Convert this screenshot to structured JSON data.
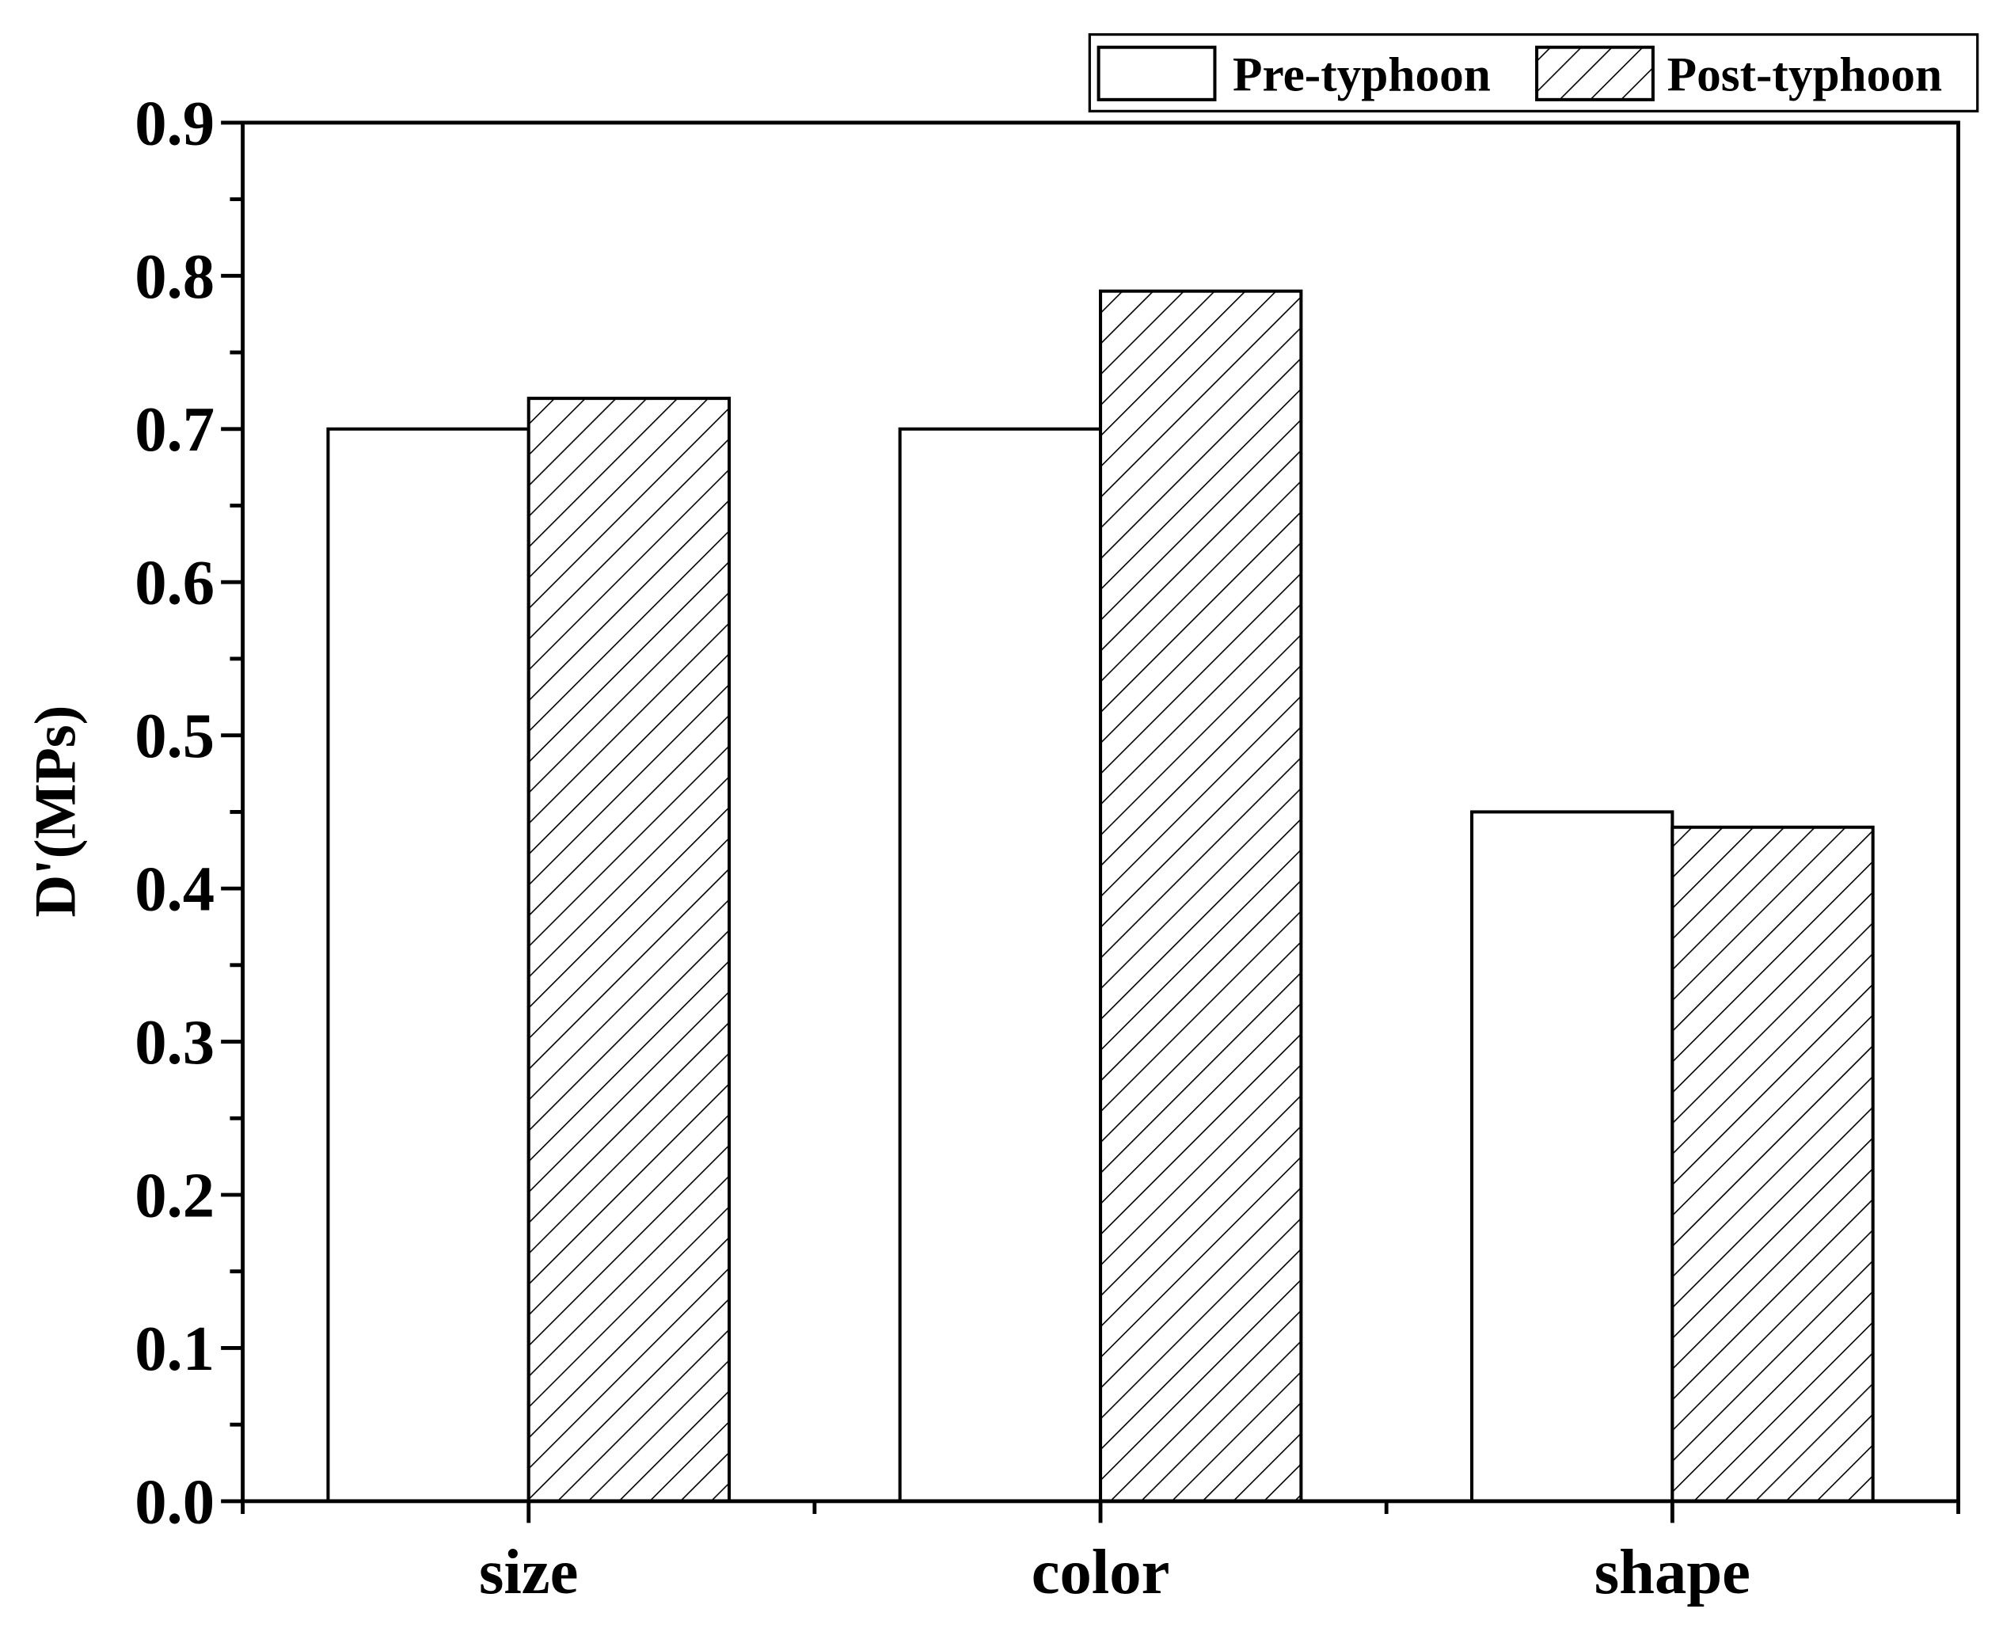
{
  "chart_data": {
    "type": "bar",
    "y_label": "D'(MPs)",
    "categories": [
      "size",
      "color",
      "shape"
    ],
    "series": [
      {
        "name": "Pre-typhoon",
        "color": "#000000",
        "pattern": "none",
        "values": [
          0.7,
          0.7,
          0.45
        ]
      },
      {
        "name": "Post-typhoon",
        "color": "#000000",
        "pattern": "hatch",
        "values": [
          0.72,
          0.79,
          0.44
        ]
      }
    ],
    "ylim": [
      0,
      0.9
    ],
    "yticks": [
      {
        "value": 0,
        "label": "0.0"
      },
      0.1,
      0.2,
      0.3,
      0.4,
      0.5,
      0.6,
      0.7,
      0.8,
      0.9
    ],
    "legend": "top-right",
    "grid": false
  }
}
